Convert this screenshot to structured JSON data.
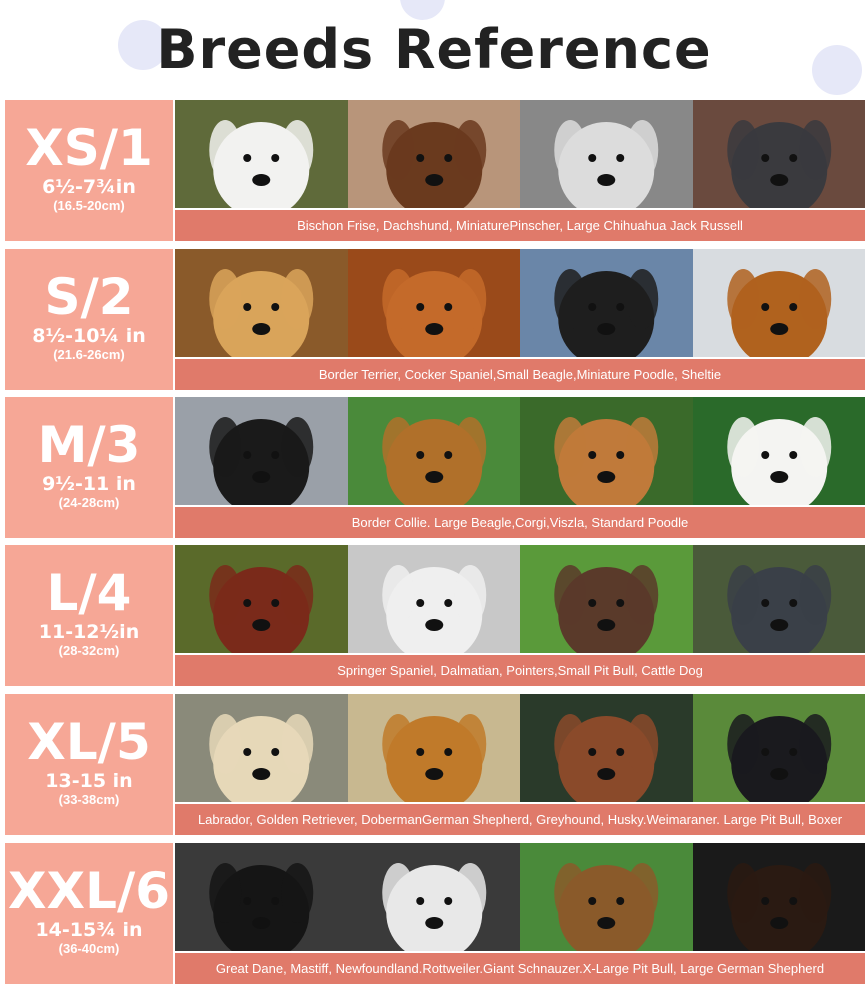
{
  "title": "Breeds Reference",
  "colors": {
    "size_panel": "#f6a796",
    "caption_bar": "#e07a6a",
    "title": "#222222"
  },
  "rows": [
    {
      "code": "XS/1",
      "inches": "6½-7¾in",
      "cm": "(16.5-20cm)",
      "breeds": "Bischon Frise, Dachshund, MiniaturePinscher, Large Chihuahua Jack Russell",
      "photos": [
        {
          "bg": "#5f6a3a",
          "fur": "#f2f2f0"
        },
        {
          "bg": "#b8957a",
          "fur": "#6a3a1e"
        },
        {
          "bg": "#888",
          "fur": "#dcdcdc"
        },
        {
          "bg": "#6a4a3e",
          "fur": "#3a3a3e"
        }
      ]
    },
    {
      "code": "S/2",
      "inches": "8½-10¼ in",
      "cm": "(21.6-26cm)",
      "breeds": "Border Terrier, Cocker Spaniel,Small Beagle,Miniature Poodle, Sheltie",
      "photos": [
        {
          "bg": "#8a5a2a",
          "fur": "#d9a45a"
        },
        {
          "bg": "#9a4a1a",
          "fur": "#c46a2a"
        },
        {
          "bg": "#6a86a8",
          "fur": "#1e1e1e"
        },
        {
          "bg": "#d8dce0",
          "fur": "#b0621e"
        }
      ]
    },
    {
      "code": "M/3",
      "inches": "9½-11 in",
      "cm": "(24-28cm)",
      "breeds": "Border Collie. Large Beagle,Corgi,Viszla, Standard Poodle",
      "photos": [
        {
          "bg": "#9aa0a8",
          "fur": "#1a1a1a"
        },
        {
          "bg": "#4a8a3a",
          "fur": "#b0702a"
        },
        {
          "bg": "#3a6a2a",
          "fur": "#c07a3a"
        },
        {
          "bg": "#2a6a2a",
          "fur": "#f4f4f2"
        }
      ]
    },
    {
      "code": "L/4",
      "inches": "11-12½in",
      "cm": "(28-32cm)",
      "breeds": "Springer Spaniel, Dalmatian, Pointers,Small Pit Bull, Cattle Dog",
      "photos": [
        {
          "bg": "#5a6a2a",
          "fur": "#7a2a1a"
        },
        {
          "bg": "#c8c8c8",
          "fur": "#efefef"
        },
        {
          "bg": "#5a9a3a",
          "fur": "#5a3a2a"
        },
        {
          "bg": "#4a5a3a",
          "fur": "#3a4048"
        }
      ]
    },
    {
      "code": "XL/5",
      "inches": "13-15 in",
      "cm": "(33-38cm)",
      "breeds": "Labrador, Golden Retriever, DobermanGerman Shepherd, Greyhound, Husky.Weimaraner. Large Pit Bull, Boxer",
      "photos": [
        {
          "bg": "#8a8a7a",
          "fur": "#e6d8b8"
        },
        {
          "bg": "#c8b890",
          "fur": "#c07a2a"
        },
        {
          "bg": "#2a3a2a",
          "fur": "#8a4a2a"
        },
        {
          "bg": "#5a8a3a",
          "fur": "#1a1a1e"
        }
      ]
    },
    {
      "code": "XXL/6",
      "inches": "14-15¾ in",
      "cm": "(36-40cm)",
      "breeds": "Great Dane, Mastiff, Newfoundland.Rottweiler.Giant Schnauzer.X-Large Pit Bull, Large German Shepherd",
      "photos": [
        {
          "bg": "#3a3a3a",
          "fur": "#151515"
        },
        {
          "bg": "#3a3a3a",
          "fur": "#e8e8e8"
        },
        {
          "bg": "#4a8a3a",
          "fur": "#8a5a2a"
        },
        {
          "bg": "#1a1a1a",
          "fur": "#2a1a12"
        }
      ]
    }
  ]
}
